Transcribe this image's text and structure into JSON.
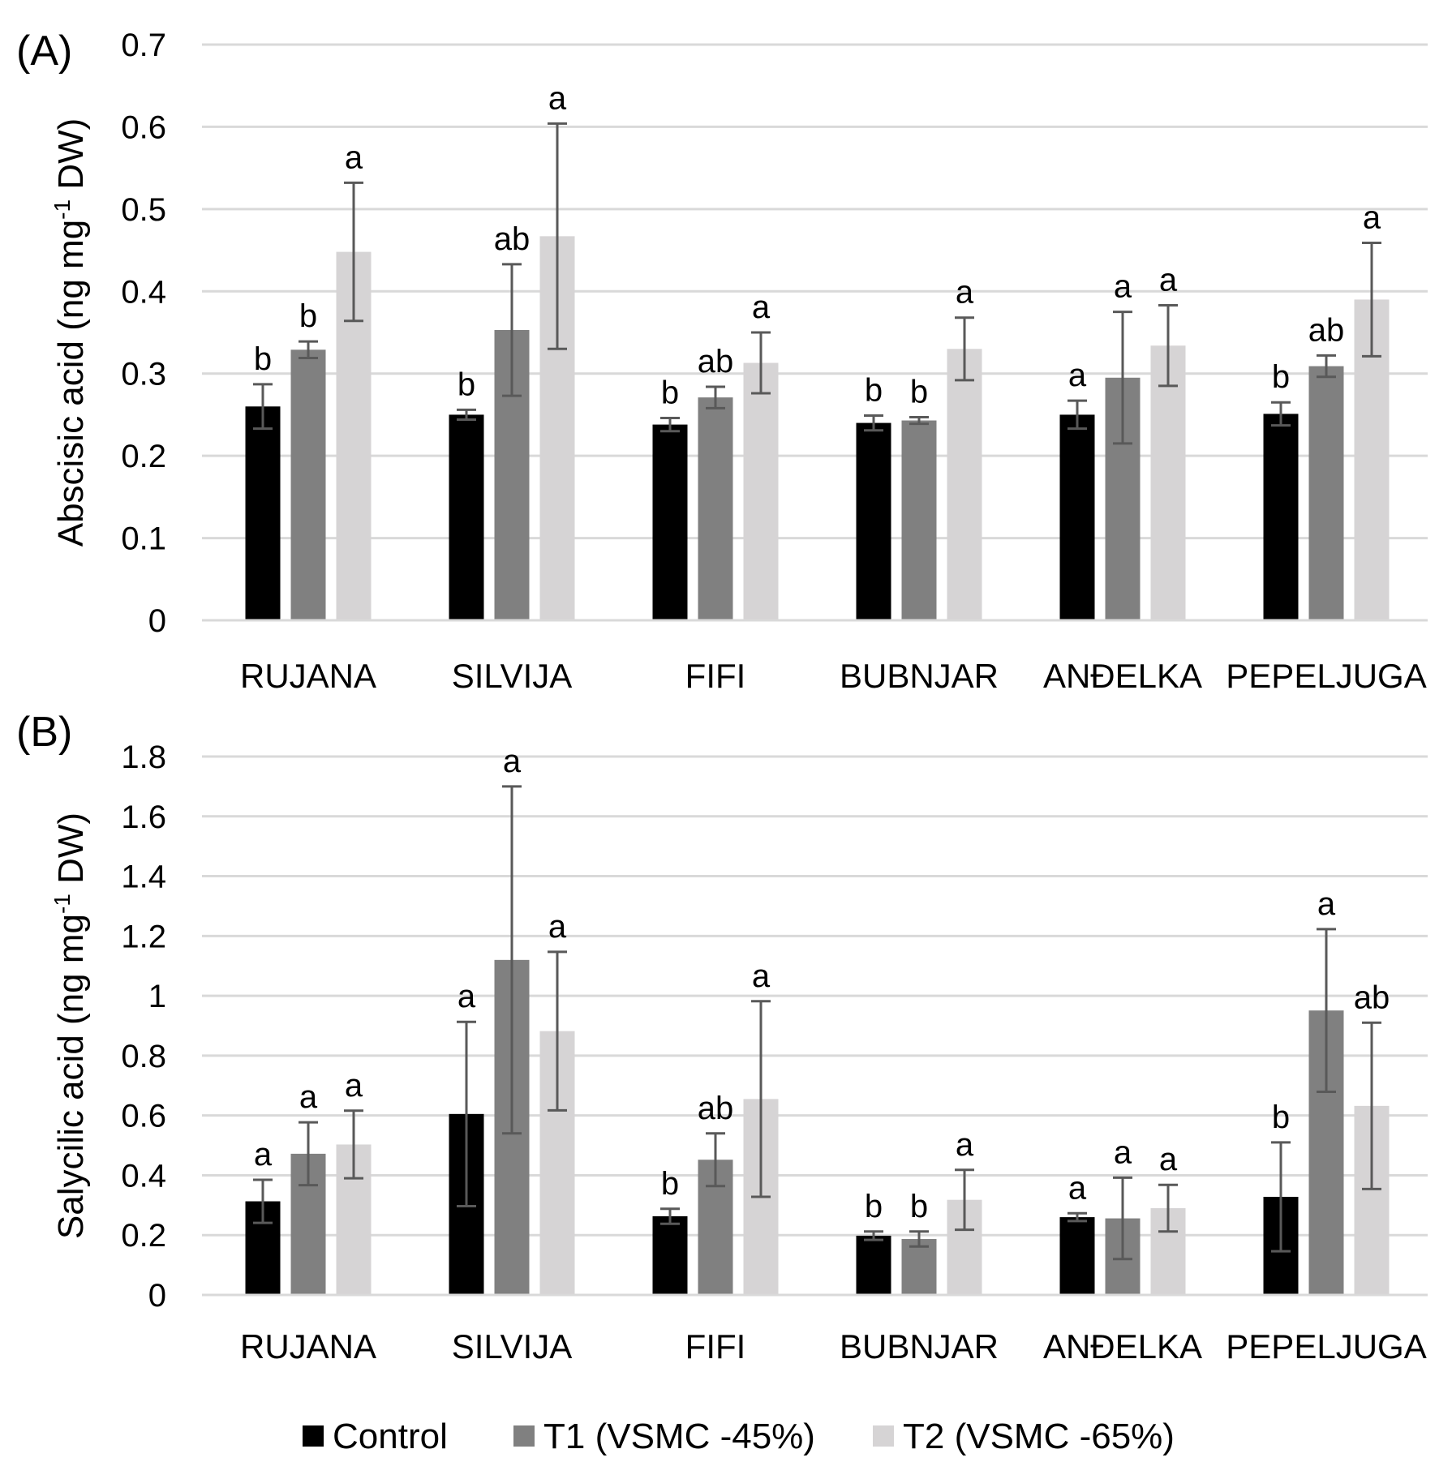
{
  "chart_data": [
    {
      "type": "bar",
      "panel_label": "(A)",
      "ylabel_main": "Abscisic acid  (ng mg",
      "ylabel_sup": "-1",
      "ylabel_end": " DW)",
      "ylim": [
        0,
        0.7
      ],
      "yticks": [
        {
          "value": 0,
          "label": "0"
        },
        {
          "value": 0.1,
          "label": "0.1"
        },
        {
          "value": 0.2,
          "label": "0.2"
        },
        {
          "value": 0.3,
          "label": "0.3"
        },
        {
          "value": 0.4,
          "label": "0.4"
        },
        {
          "value": 0.5,
          "label": "0.5"
        },
        {
          "value": 0.6,
          "label": "0.6"
        },
        {
          "value": 0.7,
          "label": "0.7"
        }
      ],
      "grid": true,
      "categories": [
        "RUJANA",
        "SILVIJA",
        "FIFI",
        "BUBNJAR",
        "ANĐELKA",
        "PEPELJUGA"
      ],
      "series": [
        {
          "name": "Control",
          "color": "#000000",
          "values": [
            0.26,
            0.25,
            0.238,
            0.24,
            0.25,
            0.251
          ],
          "errors": [
            0.027,
            0.006,
            0.008,
            0.009,
            0.017,
            0.014
          ],
          "letters": [
            "b",
            "b",
            "b",
            "b",
            "a",
            "b"
          ]
        },
        {
          "name": "T1 (VSMC -45%)",
          "color": "#808080",
          "values": [
            0.329,
            0.353,
            0.271,
            0.243,
            0.295,
            0.309
          ],
          "errors": [
            0.01,
            0.08,
            0.013,
            0.004,
            0.08,
            0.013
          ],
          "letters": [
            "b",
            "ab",
            "ab",
            "b",
            "a",
            "ab"
          ]
        },
        {
          "name": "T2 (VSMC -65%)",
          "color": "#d6d4d5",
          "values": [
            0.448,
            0.467,
            0.313,
            0.33,
            0.334,
            0.39
          ],
          "errors": [
            0.084,
            0.137,
            0.037,
            0.038,
            0.049,
            0.069
          ],
          "letters": [
            "a",
            "a",
            "a",
            "a",
            "a",
            "a"
          ]
        }
      ]
    },
    {
      "type": "bar",
      "panel_label": "(B)",
      "ylabel_main": "Salycilic acid (ng mg",
      "ylabel_sup": "-1",
      "ylabel_end": " DW)",
      "ylim": [
        0,
        1.8
      ],
      "yticks": [
        {
          "value": 0,
          "label": "0"
        },
        {
          "value": 0.2,
          "label": "0.2"
        },
        {
          "value": 0.4,
          "label": "0.4"
        },
        {
          "value": 0.6,
          "label": "0.6"
        },
        {
          "value": 0.8,
          "label": "0.8"
        },
        {
          "value": 1.0,
          "label": "1"
        },
        {
          "value": 1.2,
          "label": "1.2"
        },
        {
          "value": 1.4,
          "label": "1.4"
        },
        {
          "value": 1.6,
          "label": "1.6"
        },
        {
          "value": 1.8,
          "label": "1.8"
        }
      ],
      "grid": true,
      "categories": [
        "RUJANA",
        "SILVIJA",
        "FIFI",
        "BUBNJAR",
        "ANĐELKA",
        "PEPELJUGA"
      ],
      "series": [
        {
          "name": "Control",
          "color": "#000000",
          "values": [
            0.313,
            0.605,
            0.263,
            0.198,
            0.26,
            0.328
          ],
          "errors": [
            0.072,
            0.308,
            0.025,
            0.014,
            0.013,
            0.182
          ],
          "letters": [
            "a",
            "a",
            "b",
            "b",
            "a",
            "b"
          ]
        },
        {
          "name": "T1 (VSMC -45%)",
          "color": "#808080",
          "values": [
            0.472,
            1.12,
            0.452,
            0.187,
            0.256,
            0.951
          ],
          "errors": [
            0.105,
            0.58,
            0.088,
            0.025,
            0.136,
            0.272
          ],
          "letters": [
            "a",
            "a",
            "ab",
            "b",
            "a",
            "a"
          ]
        },
        {
          "name": "T2 (VSMC -65%)",
          "color": "#d6d4d5",
          "values": [
            0.503,
            0.882,
            0.655,
            0.318,
            0.29,
            0.632
          ],
          "errors": [
            0.113,
            0.265,
            0.327,
            0.1,
            0.078,
            0.278
          ],
          "letters": [
            "a",
            "a",
            "a",
            "a",
            "a",
            "ab"
          ]
        }
      ]
    }
  ],
  "legend": [
    {
      "label": "Control",
      "color": "#000000"
    },
    {
      "label": "T1 (VSMC -45%)",
      "color": "#808080"
    },
    {
      "label": "T2 (VSMC -65%)",
      "color": "#d6d4d5"
    }
  ]
}
